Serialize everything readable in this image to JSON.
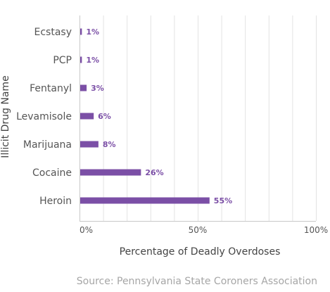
{
  "chart_data": {
    "type": "bar",
    "orientation": "horizontal",
    "categories": [
      "Ecstasy",
      "PCP",
      "Fentanyl",
      "Levamisole",
      "Marijuana",
      "Cocaine",
      "Heroin"
    ],
    "values": [
      1,
      1,
      3,
      6,
      8,
      26,
      55
    ],
    "data_labels": [
      "1%",
      "1%",
      "3%",
      "6%",
      "8%",
      "26%",
      "55%"
    ],
    "xlabel": "Percentage of Deadly Overdoses",
    "ylabel": "Illicit Drug Name",
    "xlim": [
      0,
      100
    ],
    "x_ticks": [
      0,
      50,
      100
    ],
    "x_tick_labels": [
      "0%",
      "50%",
      "100%"
    ],
    "grid": "vertical",
    "legend": "none",
    "bar_color": "#7b4fa6",
    "label_color": "#7b4fa6",
    "source": "Source: Pennsylvania State Coroners Association"
  }
}
